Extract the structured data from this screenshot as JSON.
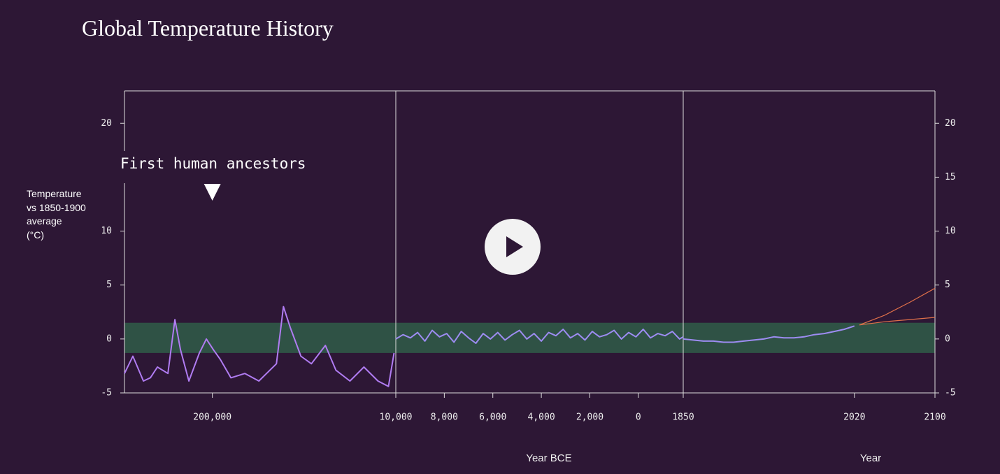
{
  "chart_data": [
    {
      "type": "line",
      "title": "Global Temperature History",
      "ylabel": [
        "Temperature",
        "vs 1850-1900",
        "average",
        "(°C)"
      ],
      "ylim": [
        -5,
        23
      ],
      "yticks": [
        -5,
        0,
        5,
        10,
        20
      ],
      "xlim": [
        291000,
        10000
      ],
      "xticks": [
        {
          "value": 200000,
          "label": "200,000"
        }
      ],
      "band": [
        -1.3,
        1.5
      ],
      "band_color": "#2f5245",
      "annotation": {
        "text": "First human ancestors",
        "x": 200000
      },
      "series": [
        {
          "color": "#b07cf2",
          "x": [
            291000,
            282300,
            271400,
            264200,
            256900,
            246000,
            238800,
            233000,
            224300,
            213400,
            206200,
            198900,
            191700,
            180800,
            166300,
            151800,
            133600,
            126400,
            119100,
            108300,
            97400,
            82900,
            72000,
            57500,
            43000,
            28500,
            17600,
            11800
          ],
          "values": [
            -3.2,
            -1.6,
            -3.9,
            -3.6,
            -2.6,
            -3.2,
            1.8,
            -1.0,
            -3.9,
            -1.3,
            0,
            -1.0,
            -1.9,
            -3.6,
            -3.2,
            -3.9,
            -2.3,
            3.0,
            1.0,
            -1.6,
            -2.3,
            -0.6,
            -2.9,
            -3.9,
            -2.6,
            -3.9,
            -4.4,
            -1.3
          ]
        }
      ]
    },
    {
      "type": "line",
      "xlabel": "Year BCE",
      "ylim": [
        -5,
        23
      ],
      "xlim": [
        10000,
        -1850
      ],
      "xticks": [
        {
          "value": 10000,
          "label": "10,000"
        },
        {
          "value": 8000,
          "label": "8,000"
        },
        {
          "value": 6000,
          "label": "6,000"
        },
        {
          "value": 4000,
          "label": "4,000"
        },
        {
          "value": 2000,
          "label": "2,000"
        },
        0,
        {
          "value": -1850,
          "label": "1850"
        }
      ],
      "band": [
        -1.3,
        1.5
      ],
      "band_color": "#2f5245",
      "series": [
        {
          "color": "#9d8cf2",
          "x": [
            10000,
            9700,
            9400,
            9100,
            8800,
            8500,
            8200,
            7900,
            7600,
            7300,
            7000,
            6700,
            6400,
            6100,
            5800,
            5500,
            5200,
            4900,
            4600,
            4300,
            4000,
            3700,
            3400,
            3100,
            2800,
            2500,
            2200,
            1900,
            1600,
            1300,
            1000,
            700,
            400,
            100,
            -200,
            -500,
            -800,
            -1100,
            -1400,
            -1700,
            -1850
          ],
          "values": [
            0,
            0.4,
            0.1,
            0.6,
            -0.2,
            0.8,
            0.2,
            0.5,
            -0.3,
            0.7,
            0.1,
            -0.4,
            0.5,
            0,
            0.6,
            -0.1,
            0.4,
            0.8,
            0,
            0.5,
            -0.2,
            0.6,
            0.3,
            0.9,
            0.1,
            0.5,
            -0.1,
            0.7,
            0.2,
            0.4,
            0.8,
            0,
            0.6,
            0.2,
            0.9,
            0.1,
            0.5,
            0.3,
            0.7,
            0,
            0.2
          ]
        }
      ]
    },
    {
      "type": "line",
      "xlabel": "Year",
      "ylim": [
        -5,
        23
      ],
      "y2ticks": [
        -5,
        0,
        5,
        10,
        15,
        20
      ],
      "xlim": [
        1850,
        2100
      ],
      "xticks": [
        2020,
        2100
      ],
      "band": [
        -1.3,
        1.5
      ],
      "band_color": "#2f5245",
      "series": [
        {
          "color": "#9d8cf2",
          "x": [
            1850,
            1860,
            1870,
            1880,
            1890,
            1900,
            1910,
            1920,
            1930,
            1940,
            1950,
            1960,
            1970,
            1980,
            1990,
            2000,
            2010,
            2020
          ],
          "values": [
            0,
            -0.1,
            -0.2,
            -0.2,
            -0.3,
            -0.3,
            -0.2,
            -0.1,
            0,
            0.2,
            0.1,
            0.1,
            0.2,
            0.4,
            0.5,
            0.7,
            0.9,
            1.2
          ]
        },
        {
          "color": "#e0704a",
          "x": [
            2025,
            2050,
            2075,
            2100
          ],
          "values": [
            1.3,
            2.2,
            3.4,
            4.7
          ]
        },
        {
          "color": "#e0704a",
          "x": [
            2025,
            2050,
            2075,
            2100
          ],
          "values": [
            1.3,
            1.6,
            1.8,
            2.0
          ]
        }
      ]
    }
  ]
}
